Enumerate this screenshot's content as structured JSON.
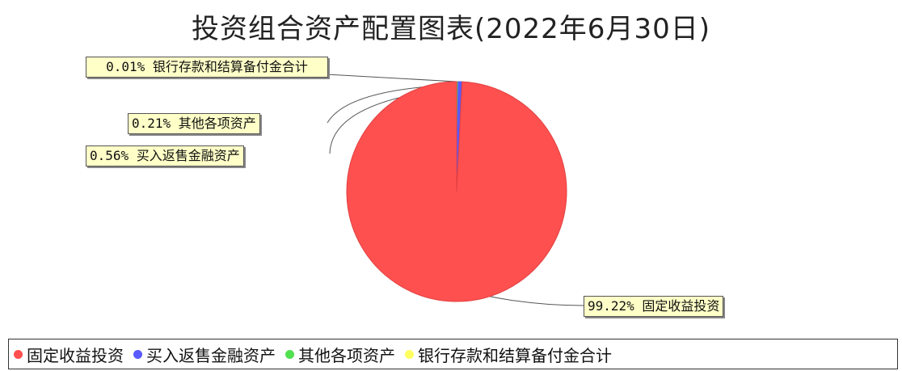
{
  "chart_data": {
    "type": "pie",
    "title": "投资组合资产配置图表(2022年6月30日)",
    "slices": [
      {
        "name": "固定收益投资",
        "value": 99.22,
        "label": "99.22% 固定收益投资",
        "color": "#ff5050"
      },
      {
        "name": "买入返售金融资产",
        "value": 0.56,
        "label": "0.56% 买入返售金融资产",
        "color": "#5a5aff"
      },
      {
        "name": "其他各项资产",
        "value": 0.21,
        "label": "0.21% 其他各项资产",
        "color": "#50e050"
      },
      {
        "name": "银行存款和结算备付金合计",
        "value": 0.01,
        "label": "0.01% 银行存款和结算备付金合计",
        "color": "#ffff60"
      }
    ],
    "legend": [
      "固定收益投资",
      "买入返售金融资产",
      "其他各项资产",
      "银行存款和结算备付金合计"
    ],
    "legend_position": "bottom"
  }
}
